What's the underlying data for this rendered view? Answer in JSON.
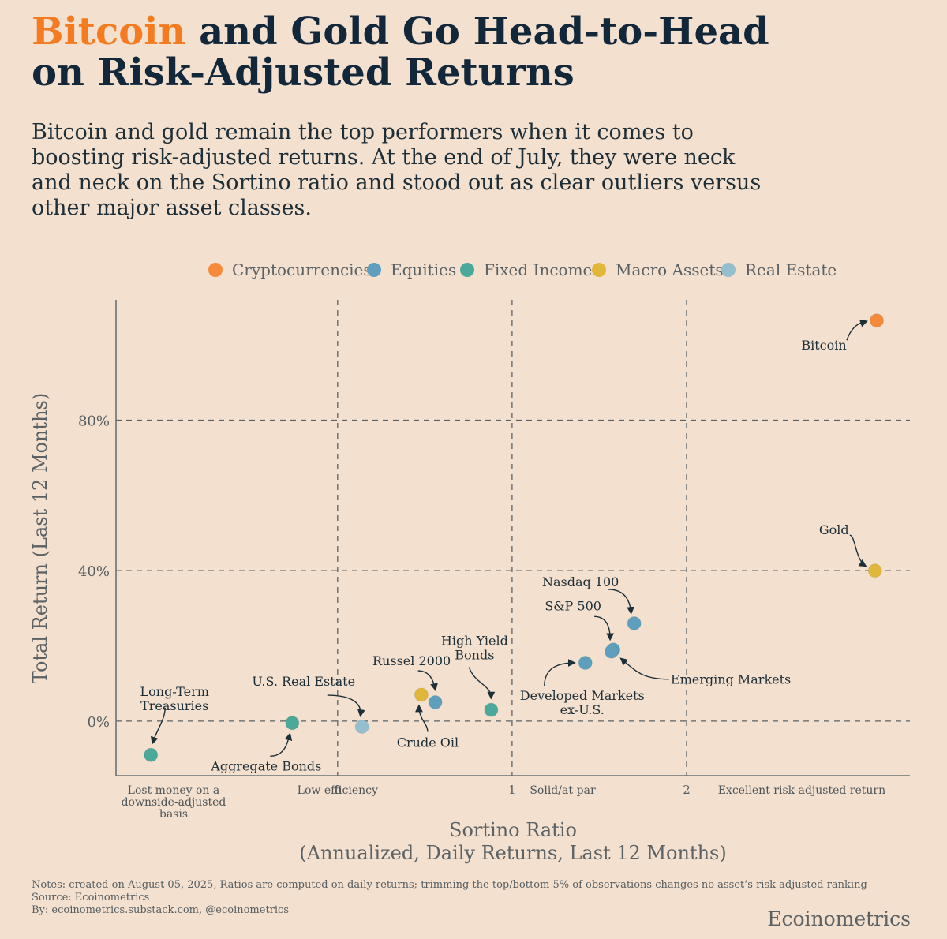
{
  "header": {
    "title_accent": "Bitcoin",
    "title_rest": " and Gold Go Head-to-Head on Risk-Adjusted Returns",
    "subtitle": "Bitcoin and gold remain the top performers when it comes to boosting risk-adjusted returns. At the end of July, they were neck and neck on the Sortino ratio and stood out as clear outliers versus other major asset classes."
  },
  "chart_data": {
    "type": "scatter",
    "xlabel": "Sortino Ratio",
    "xlabel2": "(Annualized, Daily Returns, Last 12 Months)",
    "ylabel": "Total Return (Last 12 Months)",
    "xlim": [
      -1.27,
      3.28
    ],
    "ylim": [
      -14.5,
      112
    ],
    "x_ticks": [
      {
        "value": 0,
        "label": "0"
      },
      {
        "value": 1,
        "label": "1"
      },
      {
        "value": 2,
        "label": "2"
      }
    ],
    "y_ticks": [
      {
        "value": 0,
        "label": "0%"
      },
      {
        "value": 40,
        "label": "40%"
      },
      {
        "value": 80,
        "label": "80%"
      }
    ],
    "x_categories": [
      {
        "x": -0.94,
        "label": "Lost money on a downside-adjusted basis",
        "lines": [
          "Lost money on a",
          "downside-adjusted",
          "basis"
        ]
      },
      {
        "x": 0.0,
        "label": "Low efficiency",
        "lines": [
          "Low efficiency"
        ]
      },
      {
        "x": 1.29,
        "label": "Solid/at-par",
        "lines": [
          "Solid/at-par"
        ]
      },
      {
        "x": 2.66,
        "label": "Excellent risk-adjusted return",
        "lines": [
          "Excellent risk-adjusted return"
        ]
      }
    ],
    "categories": [
      {
        "name": "Cryptocurrencies",
        "color": "#f58a3c"
      },
      {
        "name": "Equities",
        "color": "#5e9fbe"
      },
      {
        "name": "Fixed Income",
        "color": "#4aa99a"
      },
      {
        "name": "Macro Assets",
        "color": "#e0b73a"
      },
      {
        "name": "Real Estate",
        "color": "#93bfcf"
      }
    ],
    "points": [
      {
        "name": "Bitcoin",
        "category": "Cryptocurrencies",
        "x": 3.09,
        "y": 106.5
      },
      {
        "name": "Gold",
        "category": "Macro Assets",
        "x": 3.08,
        "y": 40.0
      },
      {
        "name": "Nasdaq 100",
        "category": "Equities",
        "x": 1.7,
        "y": 26.0
      },
      {
        "name": "S&P 500",
        "category": "Equities",
        "x": 1.58,
        "y": 19.0
      },
      {
        "name": "Emerging Markets",
        "category": "Equities",
        "x": 1.57,
        "y": 18.5
      },
      {
        "name": "Developed Markets ex-U.S.",
        "category": "Equities",
        "x": 1.42,
        "y": 15.5
      },
      {
        "name": "High Yield Bonds",
        "category": "Fixed Income",
        "x": 0.88,
        "y": 3.0
      },
      {
        "name": "Russel 2000",
        "category": "Equities",
        "x": 0.56,
        "y": 5.0
      },
      {
        "name": "Crude Oil",
        "category": "Macro Assets",
        "x": 0.48,
        "y": 7.0
      },
      {
        "name": "U.S. Real Estate",
        "category": "Real Estate",
        "x": 0.14,
        "y": -1.5
      },
      {
        "name": "Aggregate Bonds",
        "category": "Fixed Income",
        "x": -0.26,
        "y": -0.5
      },
      {
        "name": "Long-Term Treasuries",
        "category": "Fixed Income",
        "x": -1.07,
        "y": -9.0
      }
    ],
    "annotations": [
      {
        "point": "Bitcoin",
        "lines": [
          "Bitcoin"
        ]
      },
      {
        "point": "Gold",
        "lines": [
          "Gold"
        ]
      },
      {
        "point": "Nasdaq 100",
        "lines": [
          "Nasdaq 100"
        ]
      },
      {
        "point": "S&P 500",
        "lines": [
          "S&P 500"
        ]
      },
      {
        "point": "Emerging Markets",
        "lines": [
          "Emerging Markets"
        ]
      },
      {
        "point": "Developed Markets ex-U.S.",
        "lines": [
          "Developed Markets",
          "ex-U.S."
        ]
      },
      {
        "point": "High Yield Bonds",
        "lines": [
          "High Yield",
          "Bonds"
        ]
      },
      {
        "point": "Russel 2000",
        "lines": [
          "Russel 2000"
        ]
      },
      {
        "point": "Crude Oil",
        "lines": [
          "Crude Oil"
        ]
      },
      {
        "point": "U.S. Real Estate",
        "lines": [
          "U.S. Real Estate"
        ]
      },
      {
        "point": "Aggregate Bonds",
        "lines": [
          "Aggregate Bonds"
        ]
      },
      {
        "point": "Long-Term Treasuries",
        "lines": [
          "Long-Term",
          "Treasuries"
        ]
      }
    ]
  },
  "footer": {
    "notes": "Notes: created on August 05, 2025, Ratios are computed on daily returns; trimming the top/bottom 5% of observations changes no asset’s risk-adjusted ranking",
    "source": "Source: Ecoinometrics",
    "by": "By: ecoinometrics.substack.com, @ecoinometrics",
    "brand": "Ecoinometrics"
  }
}
